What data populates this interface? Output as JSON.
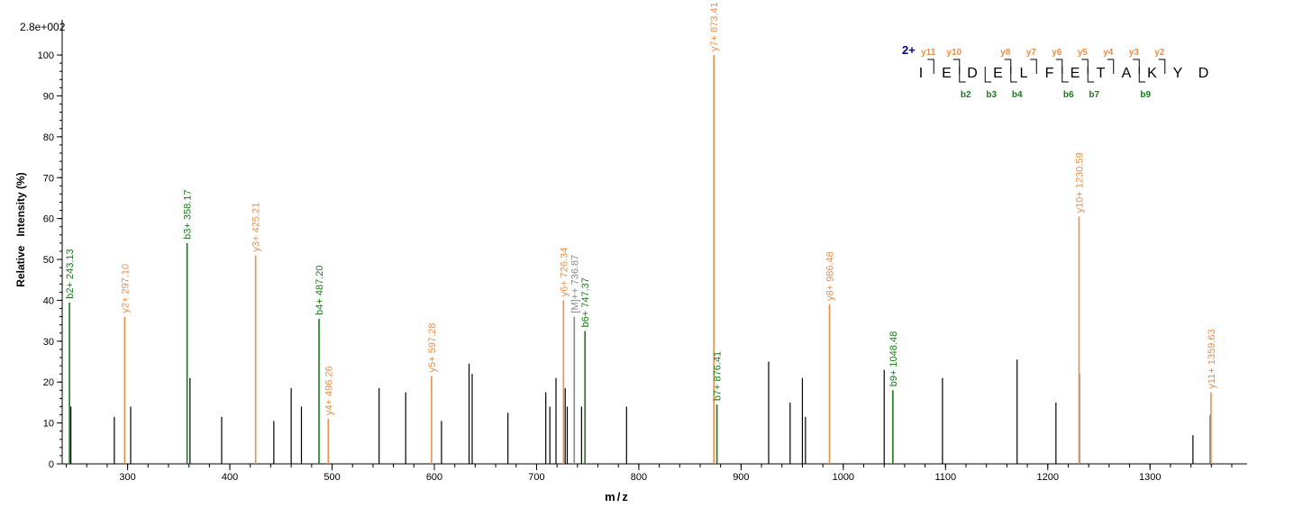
{
  "chart_data": {
    "type": "bar",
    "scale_label": "2.8e+002",
    "xlabel": "m/z",
    "ylabel": "Relative   Intensity (%)",
    "xlim": [
      236,
      1395
    ],
    "ylim": [
      0,
      102
    ],
    "x_ticks": [
      300,
      400,
      500,
      600,
      700,
      800,
      900,
      1000,
      1100,
      1200,
      1300
    ],
    "y_ticks": [
      0,
      10,
      20,
      30,
      40,
      50,
      60,
      70,
      80,
      90,
      100
    ],
    "colors": {
      "b_ion": "#1a7a1a",
      "y_ion": "#e8904a",
      "precursor": "#888888",
      "unlabeled": "#000000",
      "charge": "#000099"
    },
    "unlabeled_peaks": [
      {
        "x": 244.5,
        "y": 14
      },
      {
        "x": 287,
        "y": 11.5
      },
      {
        "x": 303,
        "y": 14
      },
      {
        "x": 361,
        "y": 21
      },
      {
        "x": 392,
        "y": 11.5
      },
      {
        "x": 443,
        "y": 10.5
      },
      {
        "x": 460,
        "y": 18.5
      },
      {
        "x": 470,
        "y": 14
      },
      {
        "x": 546,
        "y": 18.5
      },
      {
        "x": 572,
        "y": 17.5
      },
      {
        "x": 607,
        "y": 10.5
      },
      {
        "x": 634,
        "y": 24.5
      },
      {
        "x": 637,
        "y": 22
      },
      {
        "x": 672,
        "y": 12.5
      },
      {
        "x": 709,
        "y": 17.5
      },
      {
        "x": 713,
        "y": 14
      },
      {
        "x": 719,
        "y": 21
      },
      {
        "x": 728,
        "y": 18.5
      },
      {
        "x": 730,
        "y": 14
      },
      {
        "x": 744,
        "y": 14
      },
      {
        "x": 788,
        "y": 14
      },
      {
        "x": 927,
        "y": 25
      },
      {
        "x": 948,
        "y": 15
      },
      {
        "x": 960,
        "y": 21
      },
      {
        "x": 963,
        "y": 11.5
      },
      {
        "x": 1040,
        "y": 23
      },
      {
        "x": 1097,
        "y": 21
      },
      {
        "x": 1170,
        "y": 25.5
      },
      {
        "x": 1208,
        "y": 15
      },
      {
        "x": 1231,
        "y": 22
      },
      {
        "x": 1342,
        "y": 7
      },
      {
        "x": 1359,
        "y": 12
      }
    ],
    "labeled_peaks": [
      {
        "x": 243.13,
        "y": 39.5,
        "ion": "b",
        "label": "b2+ 243.13"
      },
      {
        "x": 297.1,
        "y": 36,
        "ion": "y",
        "label": "y2+ 297.10"
      },
      {
        "x": 358.17,
        "y": 54,
        "ion": "b",
        "label": "b3+ 358.17"
      },
      {
        "x": 425.21,
        "y": 51,
        "ion": "y",
        "label": "y3+ 425.21"
      },
      {
        "x": 487.2,
        "y": 35.5,
        "ion": "b",
        "label": "b4+ 487.20"
      },
      {
        "x": 496.26,
        "y": 11,
        "ion": "y",
        "label": "y4+ 496.26"
      },
      {
        "x": 597.28,
        "y": 21.5,
        "ion": "y",
        "label": "y5+ 597.28"
      },
      {
        "x": 726.34,
        "y": 40,
        "ion": "y",
        "label": "y6+ 726.34"
      },
      {
        "x": 736.87,
        "y": 36,
        "ion": "precursor",
        "label": "[M]++ 736.87"
      },
      {
        "x": 747.37,
        "y": 32.5,
        "ion": "b",
        "label": "b6+ 747.37"
      },
      {
        "x": 873.41,
        "y": 100,
        "ion": "y",
        "label": "y7+ 873.41"
      },
      {
        "x": 876.41,
        "y": 14.5,
        "ion": "b",
        "label": "b7+ 876.41"
      },
      {
        "x": 986.48,
        "y": 39,
        "ion": "y",
        "label": "y8+ 986.48"
      },
      {
        "x": 1048.48,
        "y": 18,
        "ion": "b",
        "label": "b9+ 1048.48"
      },
      {
        "x": 1230.59,
        "y": 60.5,
        "ion": "y",
        "label": "y10+ 1230.59"
      },
      {
        "x": 1359.63,
        "y": 17.5,
        "ion": "y",
        "label": "y11+ 1359.63"
      }
    ],
    "sequence": {
      "charge": "2+",
      "residues": [
        "I",
        "E",
        "D",
        "E",
        "L",
        "F",
        "E",
        "T",
        "A",
        "K",
        "Y",
        "D"
      ],
      "y_ions": [
        {
          "label": "y11",
          "after": 0
        },
        {
          "label": "y10",
          "after": 1
        },
        {
          "label": "y8",
          "after": 3
        },
        {
          "label": "y7",
          "after": 4
        },
        {
          "label": "y6",
          "after": 5
        },
        {
          "label": "y5",
          "after": 6
        },
        {
          "label": "y4",
          "after": 7
        },
        {
          "label": "y3",
          "after": 8
        },
        {
          "label": "y2",
          "after": 9
        }
      ],
      "b_ions": [
        {
          "label": "b2",
          "after": 1
        },
        {
          "label": "b3",
          "after": 2
        },
        {
          "label": "b4",
          "after": 3
        },
        {
          "label": "b6",
          "after": 5
        },
        {
          "label": "b7",
          "after": 6
        },
        {
          "label": "b9",
          "after": 8
        }
      ]
    }
  }
}
